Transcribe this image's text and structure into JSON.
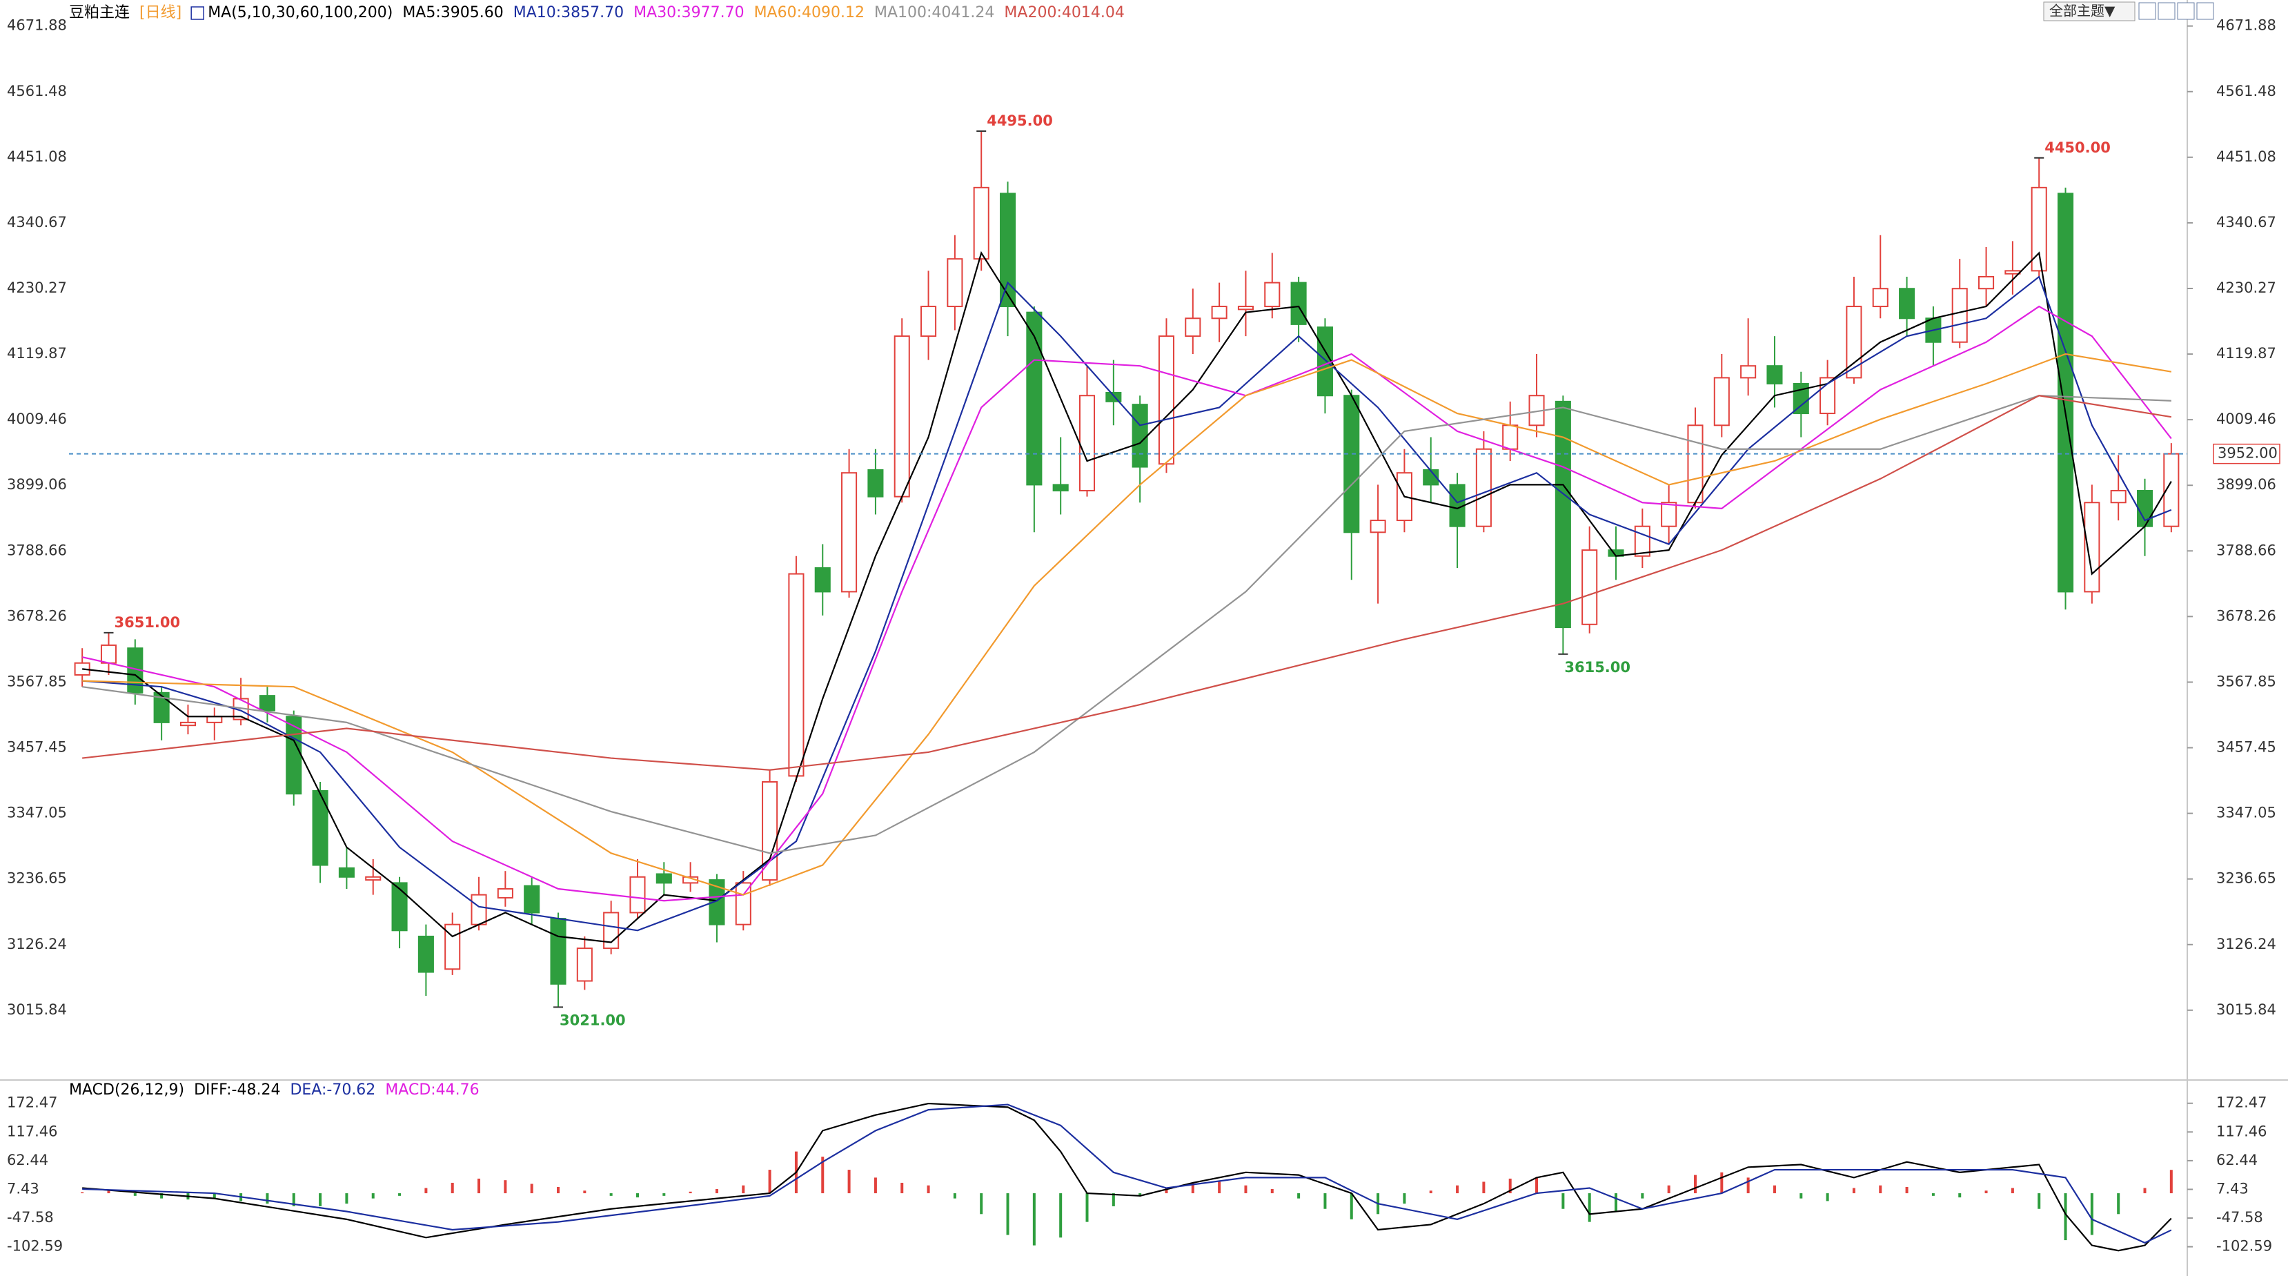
{
  "toolbar": "全部主题▼",
  "chart_data": [
    {
      "type": "candlestick",
      "title": "豆粕主连",
      "period": "[日线]",
      "legend_title": "MA(5,10,30,60,100,200)",
      "up_color": "#e2413c",
      "down_color": "#2e9e3e",
      "ylim": [
        2903,
        4711
      ],
      "yticks": [
        {
          "value": 4671.88,
          "label": "4671.88"
        },
        {
          "value": 4561.48,
          "label": "4561.48"
        },
        {
          "value": 4451.08,
          "label": "4451.08"
        },
        {
          "value": 4340.67,
          "label": "4340.67"
        },
        {
          "value": 4230.27,
          "label": "4230.27"
        },
        {
          "value": 4119.87,
          "label": "4119.87"
        },
        {
          "value": 4009.46,
          "label": "4009.46"
        },
        {
          "value": 3899.06,
          "label": "3899.06"
        },
        {
          "value": 3788.66,
          "label": "3788.66"
        },
        {
          "value": 3678.26,
          "label": "3678.26"
        },
        {
          "value": 3567.85,
          "label": "3567.85"
        },
        {
          "value": 3457.45,
          "label": "3457.45"
        },
        {
          "value": 3347.05,
          "label": "3347.05"
        },
        {
          "value": 3236.65,
          "label": "3236.65"
        },
        {
          "value": 3126.24,
          "label": "3126.24"
        },
        {
          "value": 3015.84,
          "label": "3015.84"
        }
      ],
      "open": [
        3580,
        3600,
        3625,
        3550,
        3495,
        3500,
        3505,
        3545,
        3510,
        3385,
        3255,
        3235,
        3230,
        3140,
        3085,
        3160,
        3205,
        3225,
        3170,
        3065,
        3120,
        3180,
        3245,
        3230,
        3235,
        3160,
        3235,
        3410,
        3760,
        3720,
        3925,
        3880,
        4150,
        4200,
        4280,
        4390,
        4190,
        3900,
        3890,
        4055,
        4035,
        3935,
        4150,
        4180,
        4195,
        4200,
        4240,
        4165,
        4050,
        3820,
        3840,
        3925,
        3900,
        3830,
        3960,
        4000,
        4040,
        3665,
        3790,
        3780,
        3830,
        3870,
        4000,
        4080,
        4100,
        4070,
        4020,
        4080,
        4200,
        4230,
        4180,
        4140,
        4230,
        4255,
        4260,
        4390,
        3720,
        3870,
        3890,
        3830
      ],
      "high": [
        3625,
        3651,
        3640,
        3560,
        3530,
        3525,
        3575,
        3560,
        3520,
        3400,
        3290,
        3270,
        3240,
        3160,
        3180,
        3240,
        3250,
        3240,
        3180,
        3140,
        3200,
        3270,
        3265,
        3265,
        3245,
        3250,
        3420,
        3780,
        3800,
        3960,
        3960,
        4180,
        4260,
        4320,
        4495,
        4410,
        4200,
        3980,
        4100,
        4110,
        4050,
        4180,
        4230,
        4240,
        4260,
        4290,
        4250,
        4180,
        4060,
        3900,
        3960,
        3980,
        3920,
        3990,
        4040,
        4120,
        4050,
        3830,
        3830,
        3860,
        3900,
        4030,
        4120,
        4180,
        4150,
        4090,
        4110,
        4250,
        4320,
        4250,
        4200,
        4280,
        4300,
        4310,
        4450,
        4400,
        3900,
        3950,
        3910,
        3970
      ],
      "low": [
        3560,
        3580,
        3530,
        3470,
        3480,
        3470,
        3495,
        3500,
        3360,
        3230,
        3220,
        3210,
        3120,
        3040,
        3075,
        3150,
        3190,
        3160,
        3021,
        3050,
        3110,
        3170,
        3210,
        3215,
        3130,
        3150,
        3225,
        3400,
        3680,
        3710,
        3850,
        3870,
        4110,
        4160,
        4260,
        4150,
        3820,
        3850,
        3880,
        4000,
        3870,
        3920,
        4120,
        4140,
        4150,
        4180,
        4140,
        4020,
        3740,
        3700,
        3820,
        3870,
        3760,
        3820,
        3940,
        3980,
        3615,
        3650,
        3740,
        3760,
        3800,
        3860,
        3980,
        4050,
        4030,
        3980,
        4000,
        4070,
        4180,
        4150,
        4100,
        4130,
        4200,
        4220,
        4250,
        3690,
        3700,
        3840,
        3780,
        3820
      ],
      "close": [
        3600,
        3630,
        3550,
        3500,
        3500,
        3510,
        3540,
        3520,
        3380,
        3260,
        3240,
        3240,
        3150,
        3080,
        3160,
        3210,
        3220,
        3180,
        3060,
        3120,
        3180,
        3240,
        3230,
        3240,
        3160,
        3230,
        3400,
        3750,
        3720,
        3920,
        3880,
        4150,
        4200,
        4280,
        4400,
        4200,
        3900,
        3890,
        4050,
        4040,
        3930,
        4150,
        4180,
        4200,
        4200,
        4240,
        4170,
        4050,
        3820,
        3840,
        3920,
        3900,
        3830,
        3960,
        4000,
        4050,
        3660,
        3790,
        3780,
        3830,
        3870,
        4000,
        4080,
        4100,
        4070,
        4020,
        4080,
        4200,
        4230,
        4180,
        4140,
        4230,
        4250,
        4260,
        4400,
        3720,
        3870,
        3890,
        3830,
        3952
      ],
      "series": [
        {
          "name": "MA5:3905.60",
          "color": "#000000",
          "x": [
            0,
            2,
            4,
            6,
            8,
            10,
            12,
            14,
            16,
            18,
            20,
            22,
            24,
            26,
            28,
            30,
            32,
            34,
            36,
            38,
            40,
            42,
            44,
            46,
            48,
            50,
            52,
            54,
            56,
            58,
            60,
            62,
            64,
            66,
            68,
            70,
            72,
            74,
            76,
            78,
            79
          ],
          "values": [
            3590,
            3580,
            3510,
            3510,
            3470,
            3290,
            3220,
            3140,
            3180,
            3140,
            3130,
            3210,
            3200,
            3270,
            3540,
            3780,
            3980,
            4290,
            4150,
            3940,
            3970,
            4060,
            4190,
            4200,
            4050,
            3880,
            3860,
            3900,
            3900,
            3780,
            3790,
            3950,
            4050,
            4070,
            4140,
            4180,
            4200,
            4290,
            3750,
            3830,
            3905.6
          ]
        },
        {
          "name": "MA10:3857.70",
          "color": "#1c2fa0",
          "x": [
            0,
            3,
            6,
            9,
            12,
            15,
            18,
            21,
            24,
            27,
            30,
            33,
            35,
            37,
            40,
            43,
            46,
            49,
            52,
            55,
            57,
            60,
            63,
            66,
            69,
            72,
            74,
            76,
            78,
            79
          ],
          "values": [
            3570,
            3560,
            3520,
            3450,
            3290,
            3190,
            3170,
            3150,
            3200,
            3300,
            3620,
            3990,
            4240,
            4150,
            4000,
            4030,
            4150,
            4030,
            3870,
            3920,
            3850,
            3800,
            3960,
            4070,
            4150,
            4180,
            4250,
            4000,
            3840,
            3857.7
          ]
        },
        {
          "name": "MA30:3977.70",
          "color": "#e020e0",
          "x": [
            0,
            5,
            10,
            14,
            18,
            22,
            25,
            28,
            31,
            34,
            36,
            40,
            44,
            48,
            52,
            56,
            59,
            62,
            65,
            68,
            72,
            74,
            76,
            79
          ],
          "values": [
            3610,
            3560,
            3450,
            3300,
            3220,
            3200,
            3210,
            3380,
            3720,
            4030,
            4110,
            4100,
            4050,
            4120,
            3990,
            3930,
            3870,
            3860,
            3960,
            4060,
            4140,
            4200,
            4150,
            3977.7
          ]
        },
        {
          "name": "MA60:4090.12",
          "color": "#f29a2e",
          "x": [
            0,
            8,
            14,
            20,
            25,
            28,
            32,
            36,
            40,
            44,
            48,
            52,
            56,
            60,
            64,
            68,
            72,
            75,
            79
          ],
          "values": [
            3570,
            3560,
            3450,
            3280,
            3210,
            3260,
            3480,
            3730,
            3900,
            4050,
            4110,
            4020,
            3980,
            3900,
            3940,
            4010,
            4070,
            4120,
            4090.12
          ]
        },
        {
          "name": "MA100:4041.24",
          "color": "#939393",
          "x": [
            0,
            10,
            20,
            26,
            30,
            36,
            44,
            50,
            56,
            62,
            68,
            74,
            79
          ],
          "values": [
            3560,
            3500,
            3350,
            3280,
            3310,
            3450,
            3720,
            3990,
            4030,
            3960,
            3960,
            4050,
            4041.24
          ]
        },
        {
          "name": "MA200:4014.04",
          "color": "#d0504a",
          "x": [
            0,
            10,
            20,
            26,
            32,
            40,
            50,
            56,
            62,
            68,
            74,
            79
          ],
          "values": [
            3440,
            3490,
            3440,
            3420,
            3450,
            3530,
            3640,
            3700,
            3790,
            3910,
            4050,
            4014.04
          ]
        }
      ],
      "extremes": [
        {
          "value": 3651,
          "label": "3651.00"
        },
        {
          "value": 4495,
          "label": "4495.00"
        },
        {
          "value": 3021,
          "label": "3021.00"
        },
        {
          "value": 3615,
          "label": "3615.00"
        },
        {
          "value": 4450,
          "label": "4450.00"
        }
      ],
      "last_price": {
        "value": 3952,
        "label": "3952.00",
        "color": "#4a8fc7"
      }
    },
    {
      "type": "macd",
      "title": "MACD(26,12,9)",
      "up_color": "#e2413c",
      "down_color": "#2e9e3e",
      "ylim": [
        -158.7,
        211.8
      ],
      "yticks": [
        172.47,
        117.46,
        62.44,
        7.43,
        -47.58,
        -102.59
      ],
      "series": [
        {
          "name": "DIFF:-48.24",
          "color": "#000000",
          "x": [
            0,
            5,
            10,
            13,
            16,
            20,
            26,
            27,
            28,
            30,
            32,
            35,
            36,
            37,
            38,
            40,
            42,
            44,
            46,
            48,
            49,
            51,
            53,
            55,
            56,
            57,
            59,
            61,
            63,
            65,
            67,
            69,
            71,
            73,
            74,
            75,
            76,
            77,
            78,
            79
          ],
          "values": [
            10,
            -10,
            -50,
            -85,
            -60,
            -30,
            0,
            40,
            120,
            150,
            172,
            165,
            140,
            80,
            0,
            -5,
            20,
            40,
            35,
            0,
            -70,
            -60,
            -20,
            30,
            40,
            -40,
            -30,
            10,
            50,
            55,
            30,
            60,
            40,
            50,
            55,
            -40,
            -100,
            -110,
            -100,
            -48.24
          ]
        },
        {
          "name": "DEA:-70.62",
          "color": "#1c2fa0",
          "x": [
            0,
            5,
            10,
            14,
            18,
            22,
            26,
            28,
            30,
            32,
            35,
            37,
            39,
            41,
            44,
            47,
            49,
            52,
            55,
            57,
            59,
            62,
            64,
            67,
            70,
            73,
            75,
            76,
            78,
            79
          ],
          "values": [
            8,
            0,
            -35,
            -70,
            -55,
            -30,
            -5,
            60,
            120,
            160,
            170,
            130,
            40,
            10,
            30,
            30,
            -20,
            -50,
            0,
            10,
            -30,
            0,
            45,
            45,
            45,
            45,
            30,
            -50,
            -95,
            -70.62
          ]
        }
      ],
      "histogram": {
        "name": "MACD:44.76",
        "color": "#e020e0",
        "values": [
          2,
          5,
          -5,
          -10,
          -12,
          -10,
          -15,
          -20,
          -25,
          -25,
          -20,
          -10,
          -5,
          10,
          20,
          28,
          25,
          18,
          12,
          5,
          -5,
          -8,
          -5,
          3,
          8,
          15,
          45,
          80,
          70,
          45,
          30,
          20,
          15,
          -10,
          -40,
          -80,
          -100,
          -85,
          -55,
          -25,
          -5,
          10,
          20,
          22,
          15,
          8,
          -10,
          -30,
          -50,
          -40,
          -20,
          5,
          15,
          22,
          28,
          30,
          -30,
          -55,
          -35,
          -10,
          15,
          35,
          40,
          30,
          15,
          -10,
          -15,
          10,
          15,
          12,
          -5,
          -8,
          5,
          10,
          -30,
          -90,
          -80,
          -40,
          10,
          44.76
        ]
      }
    }
  ]
}
